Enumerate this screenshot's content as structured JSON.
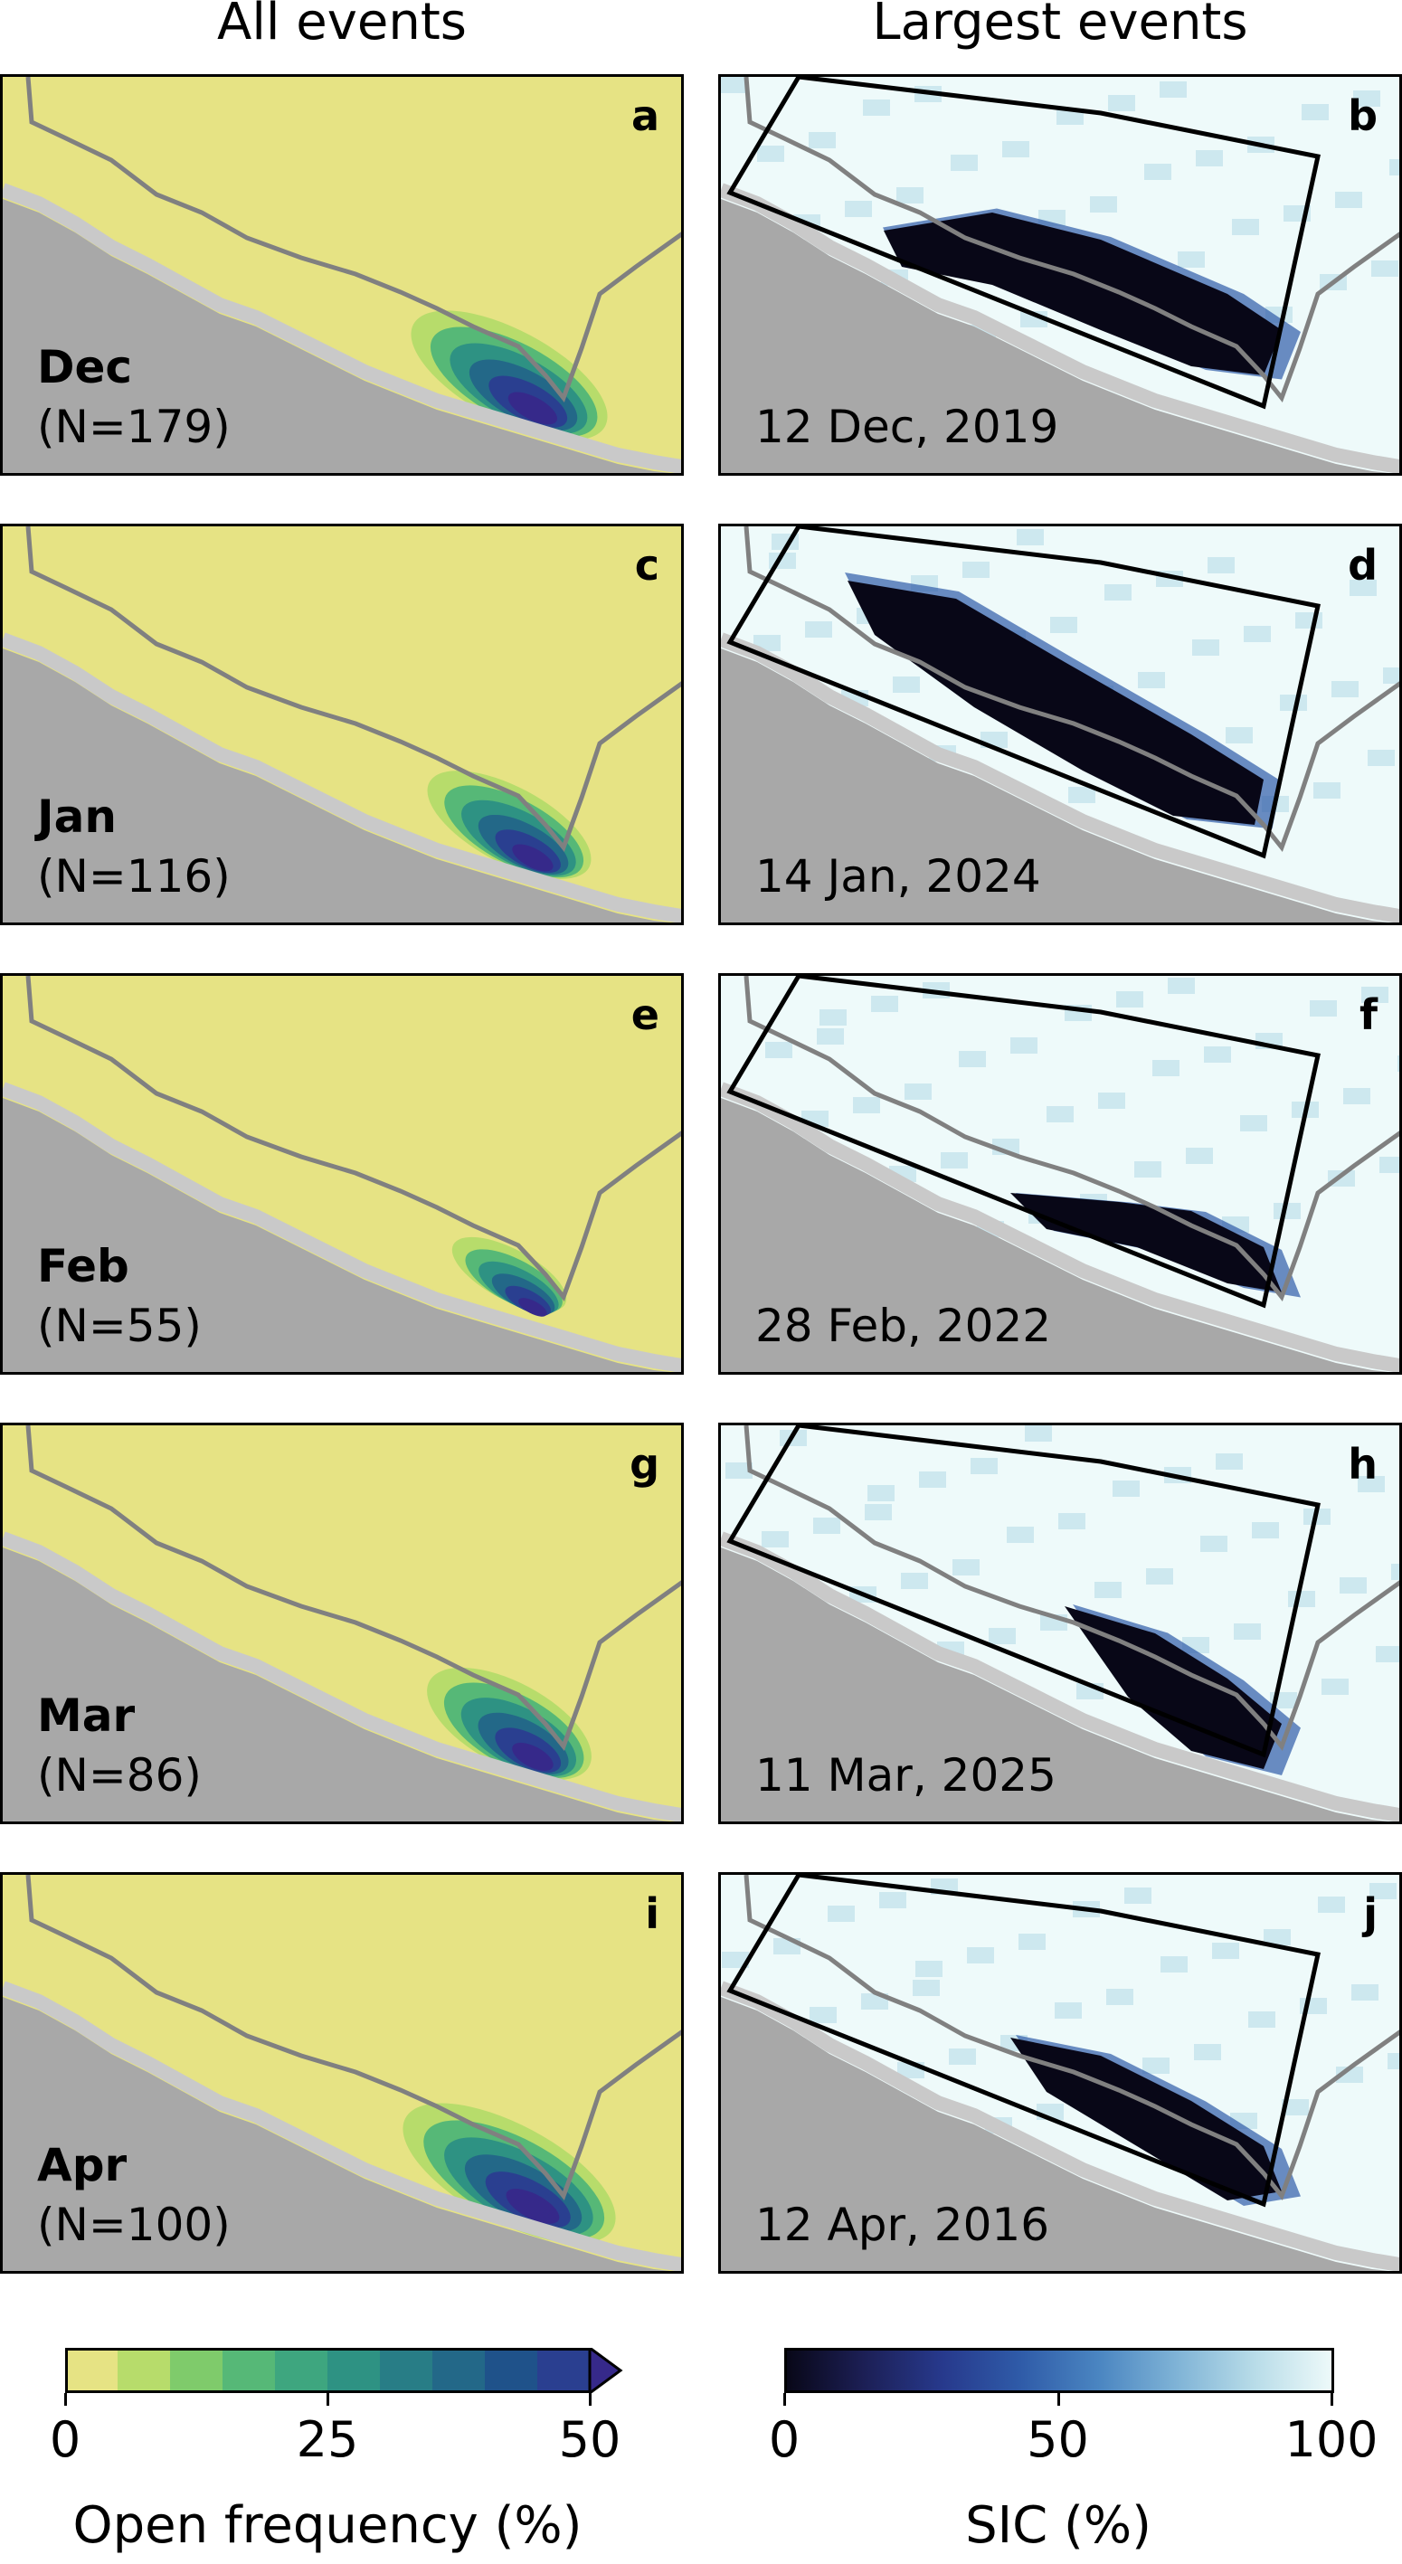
{
  "column_titles": {
    "left": "All events",
    "right": "Largest events"
  },
  "colors": {
    "land": "#a8a8a8",
    "ice_edge": "#c9c9c9",
    "open_freq_base": "#e6e384",
    "coast_line": "#808080",
    "box_line": "#000000"
  },
  "chart_data": [
    {
      "type": "heatmap",
      "title": "All events",
      "panels": [
        {
          "label": "a",
          "month": "Dec",
          "count": "(N=179)",
          "N": 179
        },
        {
          "label": "c",
          "month": "Jan",
          "count": "(N=116)",
          "N": 116
        },
        {
          "label": "e",
          "month": "Feb",
          "count": "(N=55)",
          "N": 55
        },
        {
          "label": "g",
          "month": "Mar",
          "count": "(N=86)",
          "N": 86
        },
        {
          "label": "i",
          "month": "Apr",
          "count": "(N=100)",
          "N": 100
        }
      ],
      "colorbar": {
        "label": "Open frequency (%)",
        "range": [
          0,
          50
        ],
        "ticks": [
          0,
          25,
          50
        ],
        "tick_labels": [
          "0",
          "25",
          "50"
        ],
        "extend": "max",
        "levels": [
          0,
          5,
          10,
          15,
          20,
          25,
          30,
          35,
          40,
          45,
          50
        ],
        "colors": [
          "#e6e384",
          "#b7dc6b",
          "#7fcb6b",
          "#56b877",
          "#3ea67f",
          "#2e9283",
          "#287d86",
          "#236888",
          "#1f528a",
          "#2a3f90",
          "#36298a"
        ]
      }
    },
    {
      "type": "heatmap",
      "title": "Largest events",
      "panels": [
        {
          "label": "b",
          "date": "12 Dec, 2019"
        },
        {
          "label": "d",
          "date": "14 Jan, 2024"
        },
        {
          "label": "f",
          "date": "28 Feb, 2022"
        },
        {
          "label": "h",
          "date": "11 Mar, 2025"
        },
        {
          "label": "j",
          "date": "12 Apr, 2016"
        }
      ],
      "colorbar": {
        "label": "SIC (%)",
        "range": [
          0,
          100
        ],
        "ticks": [
          0,
          50,
          100
        ],
        "tick_labels": [
          "0",
          "50",
          "100"
        ],
        "colors": [
          "#080717",
          "#1c1f55",
          "#27398c",
          "#2f5ba8",
          "#4a85c1",
          "#7fb3d6",
          "#b8dce8",
          "#eefafa"
        ]
      }
    }
  ]
}
